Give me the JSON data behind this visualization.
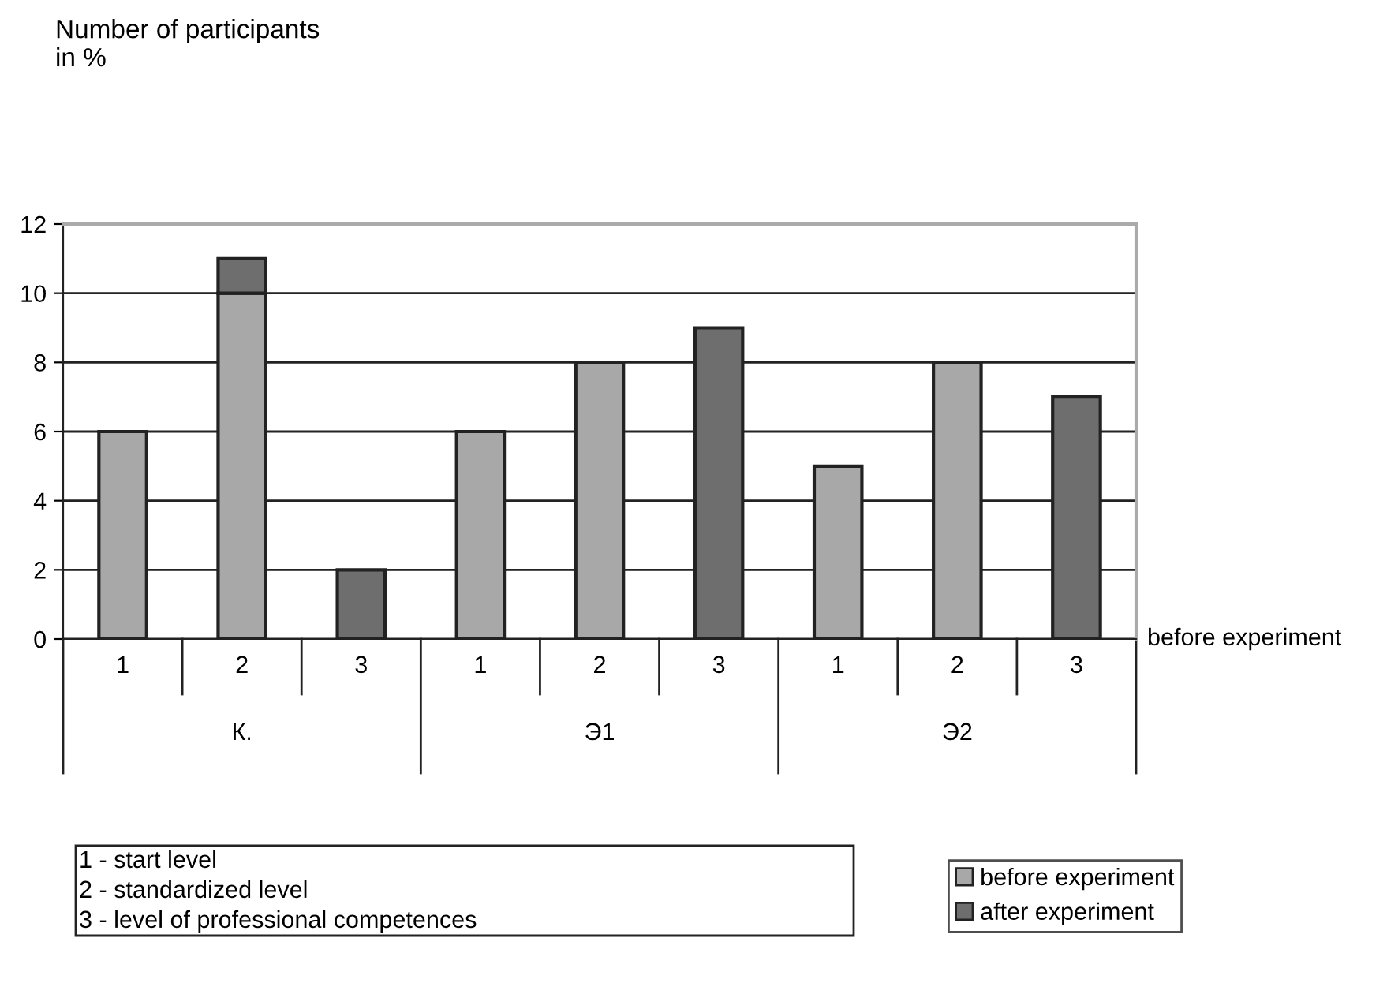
{
  "chart_data": {
    "type": "bar",
    "title": "Number of participants\nin %",
    "xlabel": "before experiment",
    "categories": [
      "1",
      "2",
      "3",
      "1",
      "2",
      "3",
      "1",
      "2",
      "3"
    ],
    "stacked": true,
    "series": [
      {
        "name": "before experiment",
        "color": "#a8a8a8",
        "values": [
          6,
          10,
          null,
          6,
          8,
          null,
          5,
          8,
          null
        ]
      },
      {
        "name": "after experiment",
        "color": "#6e6e6e",
        "values": [
          null,
          1,
          2,
          null,
          null,
          9,
          null,
          null,
          7
        ]
      }
    ],
    "ylim": [
      0,
      12
    ],
    "yticks": [
      0,
      2,
      4,
      6,
      8,
      10,
      12
    ],
    "grid": "y",
    "legend": "bottom right",
    "annotations": [
      "К.",
      "Э1",
      "Э2",
      "1 - start level",
      "2 - standardized level",
      "3 - level of professional competences"
    ]
  }
}
